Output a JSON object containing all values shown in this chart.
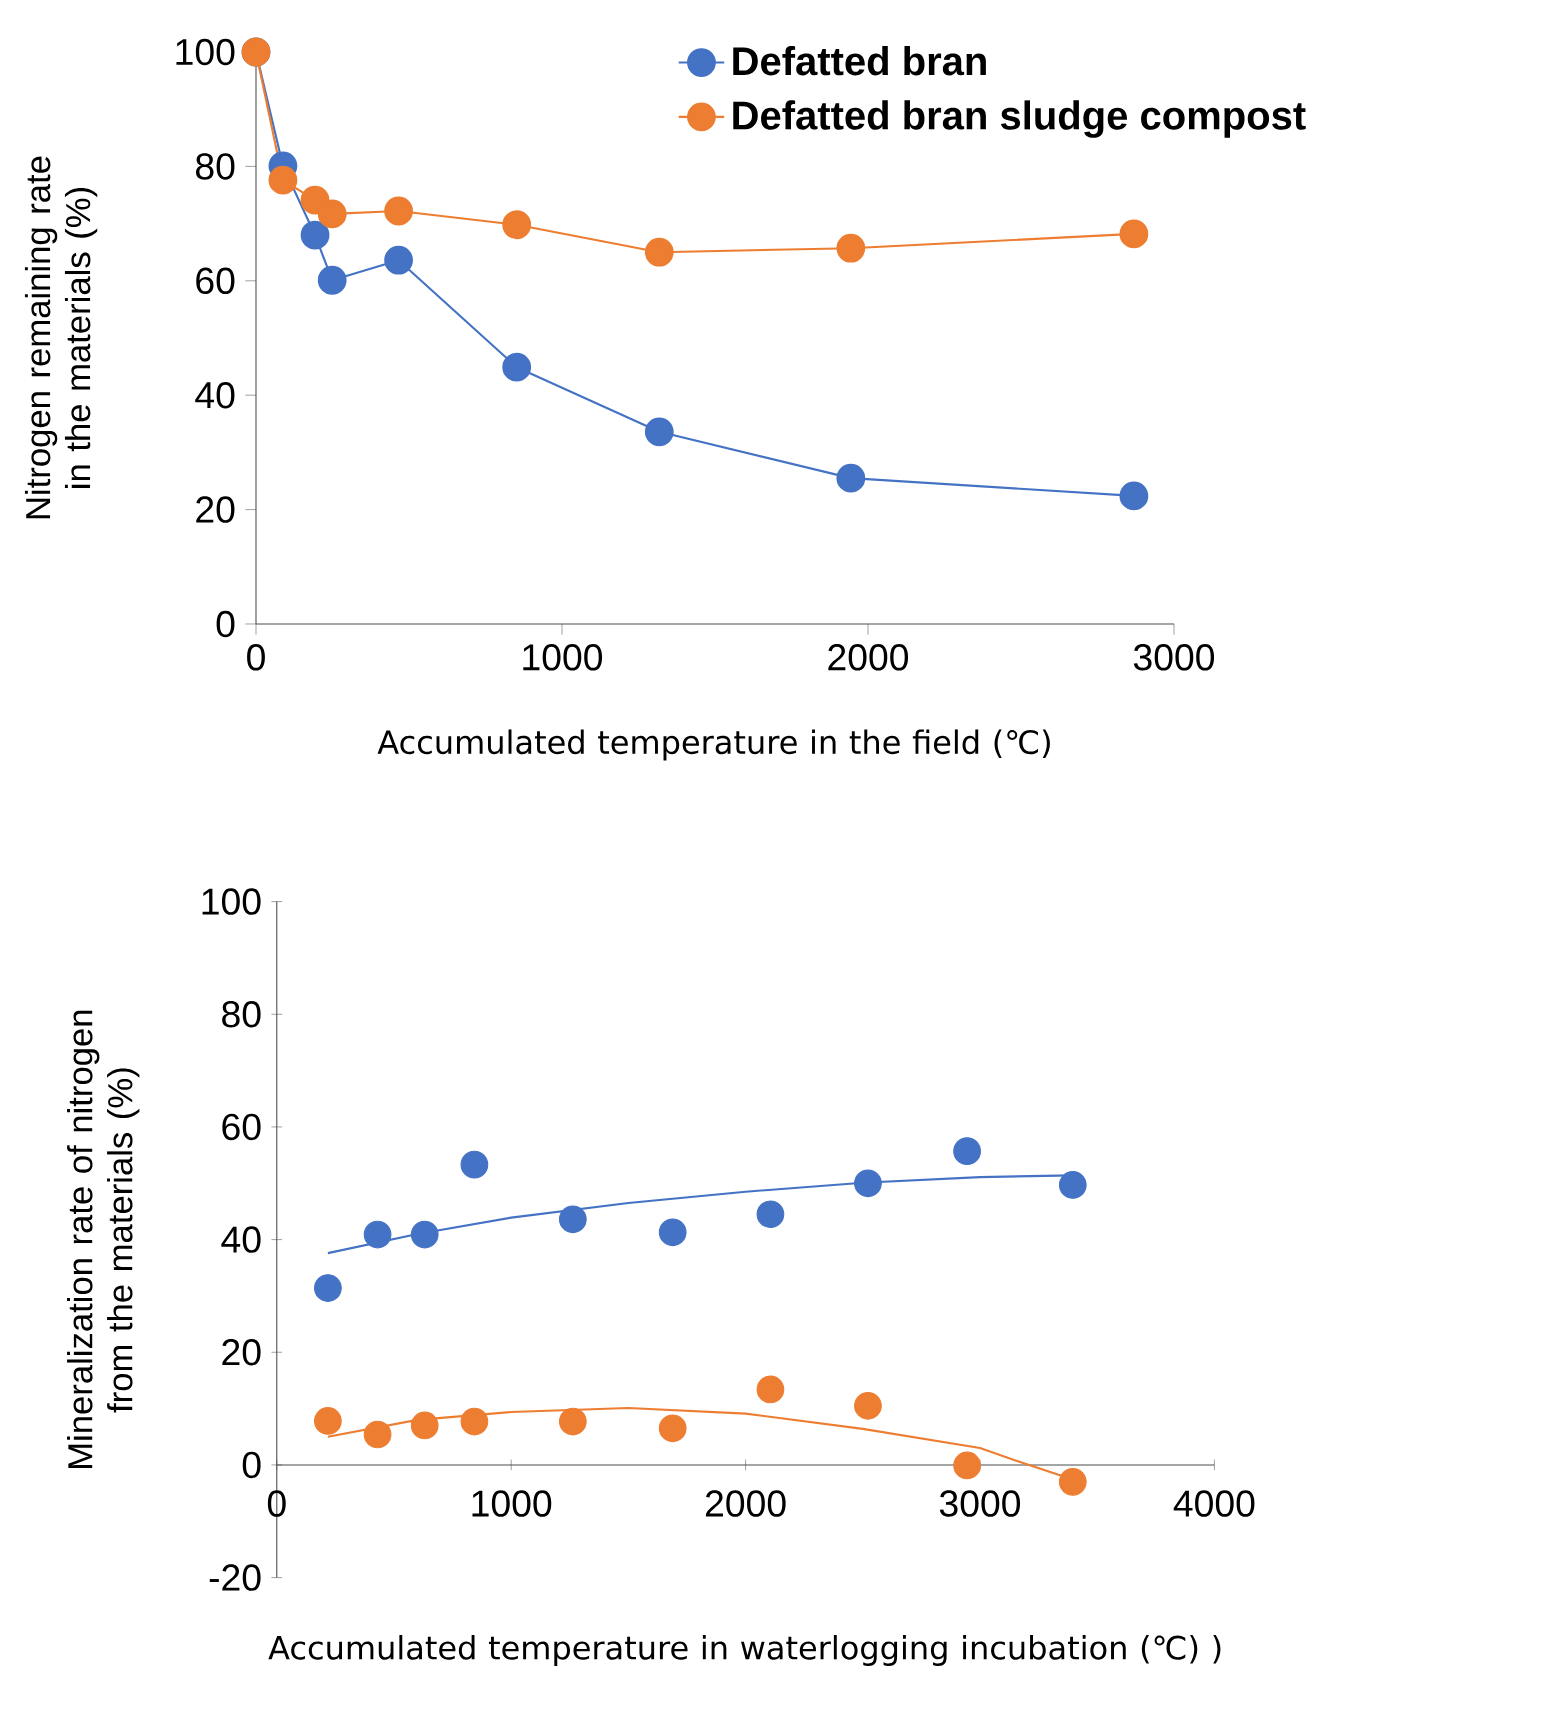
{
  "chart_data": [
    {
      "type": "line",
      "xlabel": "Accumulated temperature in the field (℃)",
      "ylabel": "Nitrogen remaining rate in the materials (%)",
      "xlim": [
        0,
        3000
      ],
      "ylim": [
        0,
        100
      ],
      "xticks": [
        0,
        1000,
        2000,
        3000
      ],
      "yticks": [
        0,
        20,
        40,
        60,
        80,
        100
      ],
      "marker": "circle",
      "legend": "top right",
      "x": [
        0,
        88,
        193,
        249,
        466,
        852,
        1318,
        1944,
        2869
      ],
      "series": [
        {
          "name": "Defatted bran",
          "color": "#4472c4",
          "values": [
            100,
            80.1,
            68.0,
            60.1,
            63.6,
            44.9,
            33.6,
            25.5,
            22.4
          ]
        },
        {
          "name": "Defatted bran sludge compost",
          "color": "#ed7d31",
          "values": [
            100,
            77.6,
            74.1,
            71.7,
            72.2,
            69.8,
            65.0,
            65.7,
            68.2
          ]
        }
      ]
    },
    {
      "type": "scatter",
      "xlabel": "Accumulated temperature in waterlogging incubation (℃) )",
      "ylabel": "Mineralization rate of nitrogen from the materials (%)",
      "xlim": [
        0,
        4000
      ],
      "ylim": [
        -20,
        100
      ],
      "xticks": [
        0,
        1000,
        2000,
        3000,
        4000
      ],
      "yticks": [
        -20,
        0,
        20,
        40,
        60,
        80,
        100
      ],
      "marker": "circle",
      "x": [
        218,
        430,
        631,
        843,
        1263,
        1689,
        2106,
        2522,
        2945,
        3396
      ],
      "series": [
        {
          "color": "#4472c4",
          "values": [
            31.4,
            40.9,
            40.9,
            53.3,
            43.6,
            41.3,
            44.5,
            50.0,
            55.7,
            49.7
          ]
        },
        {
          "color": "#ed7d31",
          "values": [
            7.8,
            5.4,
            7.0,
            7.7,
            7.7,
            6.5,
            13.4,
            10.5,
            -0.1,
            -3.0
          ]
        },
        {
          "type": "line",
          "marker": "none",
          "color": "#4472c4",
          "x": [
            218,
            600,
            1000,
            1500,
            2000,
            2500,
            3000,
            3396
          ],
          "values": [
            37.6,
            41.0,
            43.9,
            46.5,
            48.5,
            50.1,
            51.1,
            51.4
          ]
        },
        {
          "type": "line",
          "marker": "none",
          "color": "#ed7d31",
          "x": [
            218,
            600,
            1000,
            1500,
            2000,
            2500,
            3000,
            3200,
            3396
          ],
          "values": [
            5.0,
            8.0,
            9.4,
            10.1,
            9.1,
            6.4,
            3.0,
            0.1,
            -2.6
          ]
        }
      ]
    }
  ]
}
